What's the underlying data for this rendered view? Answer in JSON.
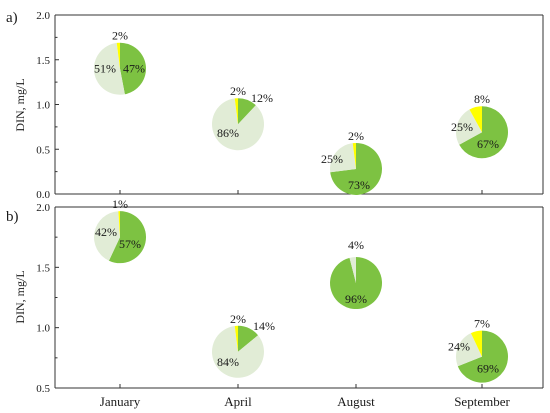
{
  "chart_data": [
    {
      "panel_label": "a)",
      "type": "scatter",
      "marker": "pie",
      "ylabel": "DIN, mg/L",
      "ylim": [
        0,
        2.0
      ],
      "yticks": [
        "0.0",
        "0.5",
        "1.0",
        "1.5",
        "2.0"
      ],
      "categories": [
        "January",
        "April",
        "August",
        "September"
      ],
      "points": [
        {
          "x": "January",
          "y": 1.4,
          "slices": [
            {
              "value": 47,
              "label": "47%",
              "color": "#7dc242"
            },
            {
              "value": 51,
              "label": "51%",
              "color": "#e1ecd6"
            },
            {
              "value": 2,
              "label": "2%",
              "color": "#ffff00"
            }
          ]
        },
        {
          "x": "April",
          "y": 0.78,
          "slices": [
            {
              "value": 12,
              "label": "12%",
              "color": "#7dc242"
            },
            {
              "value": 86,
              "label": "86%",
              "color": "#e1ecd6"
            },
            {
              "value": 2,
              "label": "2%",
              "color": "#ffff00"
            }
          ]
        },
        {
          "x": "August",
          "y": 0.28,
          "slices": [
            {
              "value": 73,
              "label": "73%",
              "color": "#7dc242"
            },
            {
              "value": 25,
              "label": "25%",
              "color": "#e1ecd6"
            },
            {
              "value": 2,
              "label": "2%",
              "color": "#ffff00"
            }
          ]
        },
        {
          "x": "September",
          "y": 0.69,
          "slices": [
            {
              "value": 67,
              "label": "67%",
              "color": "#7dc242"
            },
            {
              "value": 25,
              "label": "25%",
              "color": "#e1ecd6"
            },
            {
              "value": 8,
              "label": "8%",
              "color": "#ffff00"
            }
          ]
        }
      ]
    },
    {
      "panel_label": "b)",
      "type": "scatter",
      "marker": "pie",
      "ylabel": "DIN, mg/L",
      "ylim": [
        0.5,
        2.0
      ],
      "yticks": [
        "0.5",
        "1.0",
        "1.5",
        "2.0"
      ],
      "categories": [
        "January",
        "April",
        "August",
        "September"
      ],
      "points": [
        {
          "x": "January",
          "y": 1.75,
          "slices": [
            {
              "value": 57,
              "label": "57%",
              "color": "#7dc242"
            },
            {
              "value": 42,
              "label": "42%",
              "color": "#e1ecd6"
            },
            {
              "value": 1,
              "label": "1%",
              "color": "#ffff00"
            }
          ]
        },
        {
          "x": "April",
          "y": 0.8,
          "slices": [
            {
              "value": 14,
              "label": "14%",
              "color": "#7dc242"
            },
            {
              "value": 84,
              "label": "84%",
              "color": "#e1ecd6"
            },
            {
              "value": 2,
              "label": "2%",
              "color": "#ffff00"
            }
          ]
        },
        {
          "x": "August",
          "y": 1.37,
          "slices": [
            {
              "value": 96,
              "label": "96%",
              "color": "#7dc242"
            },
            {
              "value": 4,
              "label": "4%",
              "color": "#e1ecd6"
            }
          ]
        },
        {
          "x": "September",
          "y": 0.76,
          "slices": [
            {
              "value": 69,
              "label": "69%",
              "color": "#7dc242"
            },
            {
              "value": 24,
              "label": "24%",
              "color": "#e1ecd6"
            },
            {
              "value": 7,
              "label": "7%",
              "color": "#ffff00"
            }
          ]
        }
      ]
    }
  ]
}
